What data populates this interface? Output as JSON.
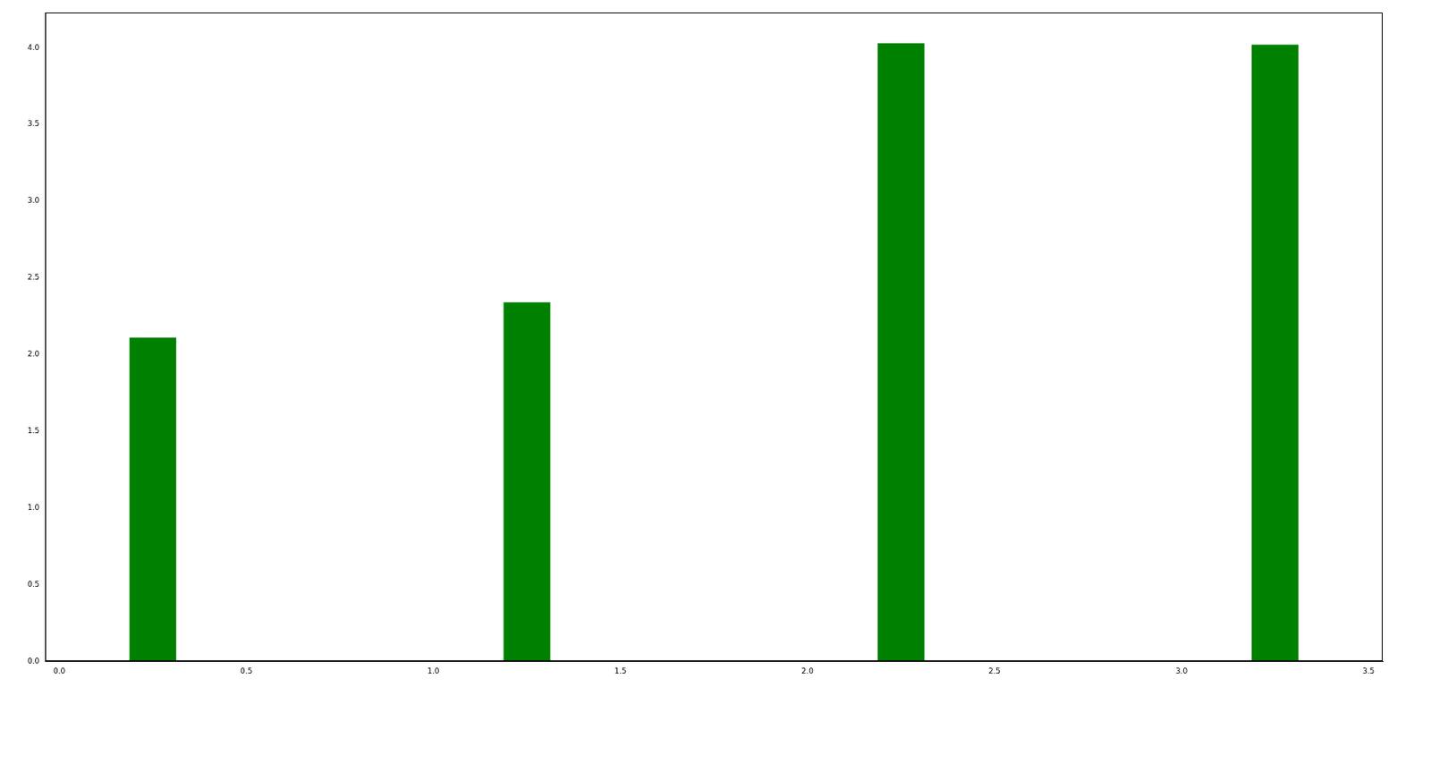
{
  "chart_data": {
    "type": "bar",
    "x": [
      0.25,
      1.25,
      2.25,
      3.25
    ],
    "values": [
      2.11,
      2.34,
      4.03,
      4.02
    ],
    "color": "#008000",
    "xlim": [
      -0.0375,
      3.5375
    ],
    "xticks": [
      {
        "value": 0,
        "label": "0.0"
      },
      0.5,
      {
        "value": 1,
        "label": "1.0"
      },
      1.5,
      {
        "value": 2,
        "label": "2.0"
      },
      2.5,
      {
        "value": 3,
        "label": "3.0"
      },
      3.5
    ],
    "ylim": [
      0,
      4.23
    ],
    "yticks": [
      {
        "value": 0,
        "label": "0.0"
      },
      0.5,
      {
        "value": 1,
        "label": "1.0"
      },
      1.5,
      {
        "value": 2,
        "label": "2.0"
      },
      2.5,
      {
        "value": 3,
        "label": "3.0"
      },
      3.5,
      {
        "value": 4,
        "label": "4.0"
      }
    ],
    "grid": false
  }
}
